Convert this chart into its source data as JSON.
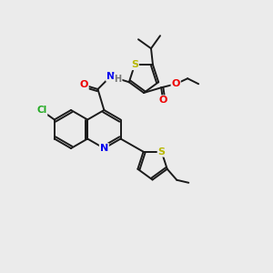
{
  "background_color": "#ebebeb",
  "bond_color": "#1a1a1a",
  "atom_colors": {
    "S": "#b8b800",
    "N": "#0000ee",
    "O": "#ee0000",
    "Cl": "#22aa22",
    "H": "#777777",
    "C": "#1a1a1a"
  },
  "figsize": [
    3.0,
    3.0
  ],
  "dpi": 100
}
